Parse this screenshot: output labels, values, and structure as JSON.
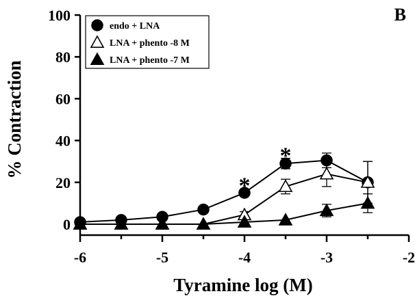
{
  "chart_data": {
    "type": "line",
    "panel_label": "B",
    "xlabel": "Tyramine log (M)",
    "ylabel": "% Contraction",
    "xlim": [
      -6,
      -2
    ],
    "ylim": [
      0,
      100
    ],
    "x_ticks": [
      -6,
      -5,
      -4,
      -3,
      -2
    ],
    "x_tick_labels": [
      "-6",
      "-5",
      "-4",
      "-3",
      "-2"
    ],
    "x_minor_ticks": [
      -5.5,
      -4.5,
      -3.5,
      -2.5
    ],
    "y_ticks": [
      0,
      20,
      40,
      60,
      80,
      100
    ],
    "y_tick_labels": [
      "0",
      "20",
      "40",
      "60",
      "80",
      "100"
    ],
    "grid": false,
    "legend_position": "top-left",
    "series": [
      {
        "name": "endo + LNA",
        "marker": "circle",
        "fill": "#000000",
        "x": [
          -6,
          -5.5,
          -5,
          -4.5,
          -4,
          -3.5,
          -3,
          -2.5
        ],
        "y": [
          1,
          2,
          3.5,
          7,
          15,
          29,
          30.5,
          20
        ],
        "err": [
          0,
          0,
          0,
          0,
          1.5,
          2.5,
          3.5,
          10
        ]
      },
      {
        "name": "LNA + phento -8 M",
        "marker": "triangle-open",
        "fill": "#ffffff",
        "x": [
          -6,
          -5.5,
          -5,
          -4.5,
          -4,
          -3.5,
          -3,
          -2.5
        ],
        "y": [
          0,
          0,
          0,
          0,
          4.5,
          18,
          24,
          20
        ],
        "err": [
          0,
          0,
          0,
          0,
          1.5,
          3.5,
          6,
          10
        ]
      },
      {
        "name": "LNA + phento -7 M",
        "marker": "triangle-filled",
        "fill": "#000000",
        "x": [
          -6,
          -5.5,
          -5,
          -4.5,
          -4,
          -3.5,
          -3,
          -2.5
        ],
        "y": [
          0,
          0,
          0,
          0,
          1,
          2,
          6.5,
          10
        ],
        "err": [
          0,
          0,
          0,
          0,
          0,
          0,
          3,
          4.5
        ]
      }
    ],
    "annotations": [
      {
        "text": "*",
        "x": -4,
        "y": 22
      },
      {
        "text": "*",
        "x": -3.5,
        "y": 36.5
      }
    ]
  }
}
